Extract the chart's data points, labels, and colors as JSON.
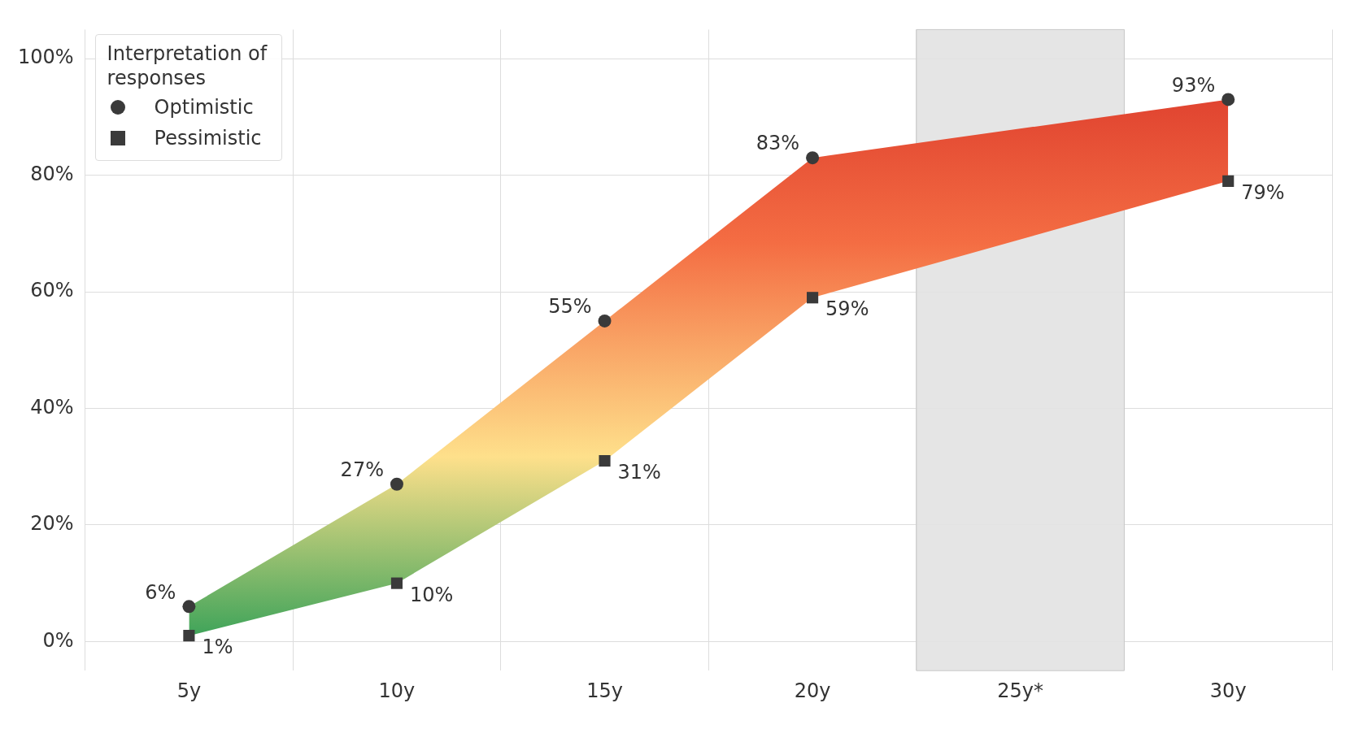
{
  "chart_data": {
    "type": "line",
    "categories": [
      "5y",
      "10y",
      "15y",
      "20y",
      "25y*",
      "30y"
    ],
    "series": [
      {
        "name": "Optimistic",
        "type": "area",
        "color": "#3a3a3a",
        "marker": "circle",
        "values": [
          6,
          27,
          55,
          83,
          null,
          93
        ],
        "value_labels": [
          "6%",
          "27%",
          "55%",
          "83%",
          null,
          "93%"
        ]
      },
      {
        "name": "Pessimistic",
        "type": "scatter",
        "color": "#3a3a3a",
        "marker": "square",
        "values": [
          1,
          10,
          31,
          59,
          null,
          79
        ],
        "value_labels": [
          "1%",
          "10%",
          "31%",
          "59%",
          null,
          "79%"
        ]
      }
    ],
    "colors": [
      "#1a9850",
      "#fee08b",
      "#f46d43",
      "#d73027"
    ],
    "legend_title": "Interpretation of responses",
    "legend": "top left",
    "ylim": [
      -5,
      105
    ],
    "yticks": [
      {
        "value": 0,
        "label": "0%"
      },
      {
        "value": 20,
        "label": "20%"
      },
      {
        "value": 40,
        "label": "40%"
      },
      {
        "value": 60,
        "label": "60%"
      },
      {
        "value": 80,
        "label": "80%"
      },
      {
        "value": 100,
        "label": "100%"
      }
    ],
    "bands": [
      {
        "axis": "x",
        "from": "25y*",
        "to": "25y*",
        "color": "#e2e2e2"
      }
    ],
    "grid": true
  }
}
